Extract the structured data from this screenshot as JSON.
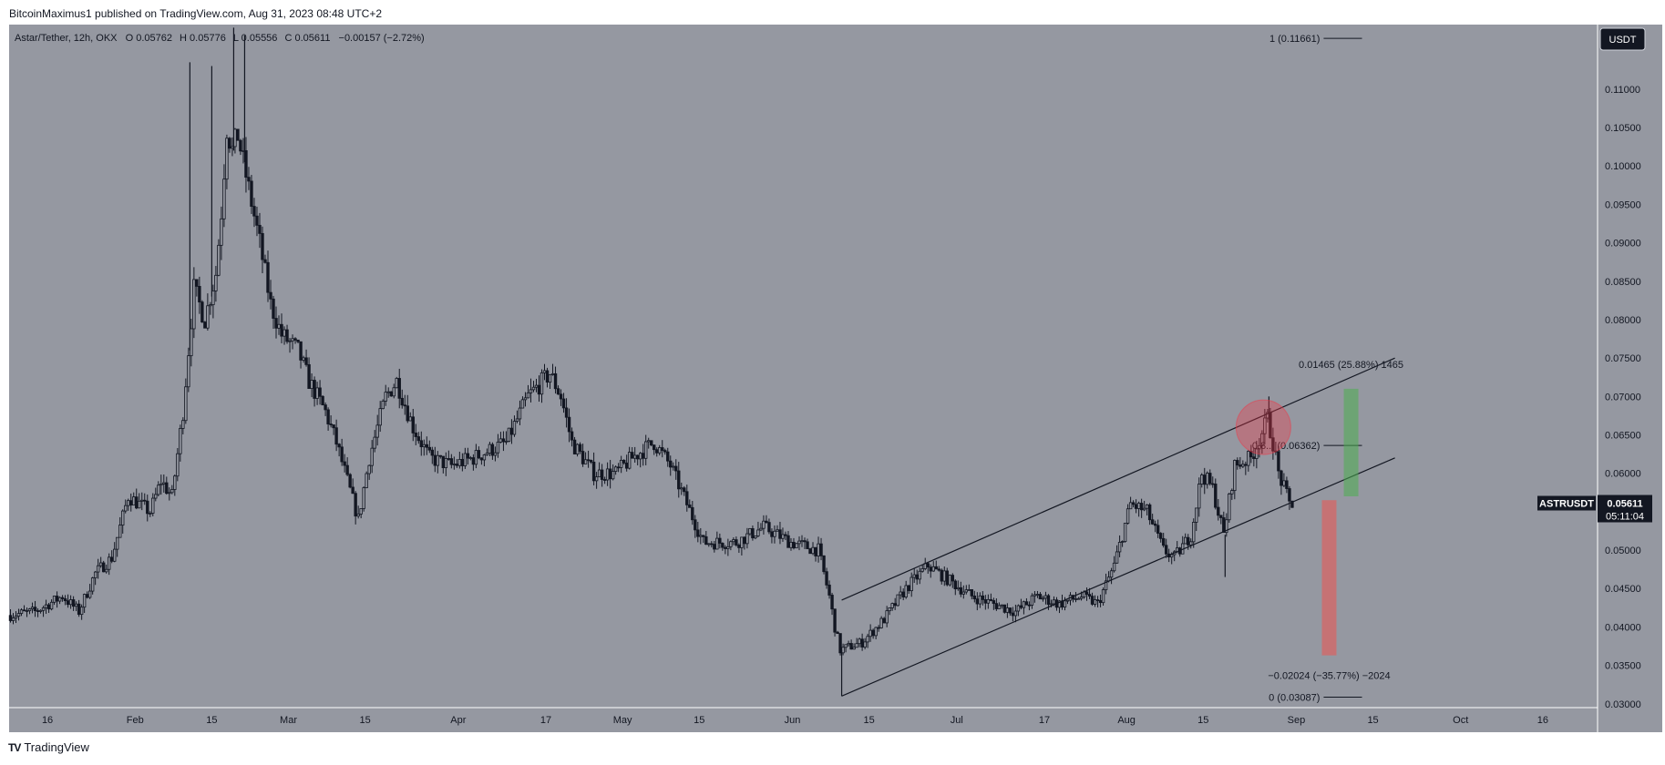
{
  "header": {
    "publisher_line": "BitcoinMaximus1 published on TradingView.com, Aug 31, 2023 08:48 UTC+2"
  },
  "footer": {
    "logo_glyph": "TV",
    "brand": "TradingView"
  },
  "colors": {
    "page_bg": "#ffffff",
    "chart_bg": "#9598a1",
    "candle": "#131722",
    "axis_text": "#131722",
    "circle": "#f23645",
    "green_bar": "#4caf50",
    "red_bar": "#ef5350",
    "price_tag_bg": "#131722",
    "price_tag_text": "#ffffff"
  },
  "legend": {
    "symbol": "Astar/Tether, 12h, OKX",
    "o_label": "O",
    "o_value": "0.05762",
    "h_label": "H",
    "h_value": "0.05776",
    "l_label": "L",
    "l_value": "0.05556",
    "c_label": "C",
    "c_value": "0.05611",
    "change": "−0.00157 (−2.72%)"
  },
  "currency_button": "USDT",
  "price_tag": {
    "symbol": "ASTRUSDT",
    "price": "0.05611",
    "countdown": "05:11:04"
  },
  "chart_data": {
    "type": "candlestick",
    "symbol": "ASTRUSDT",
    "timeframe": "12h",
    "ylim": [
      0.0295,
      0.1184
    ],
    "xlim": [
      "2023-01-09",
      "2023-10-26"
    ],
    "y_ticks": [
      "0.03000",
      "0.03500",
      "0.04000",
      "0.04500",
      "0.05000",
      "0.05500",
      "0.06000",
      "0.06500",
      "0.07000",
      "0.07500",
      "0.08000",
      "0.08500",
      "0.09000",
      "0.09500",
      "0.10000",
      "0.10500",
      "0.11000"
    ],
    "x_ticks": [
      {
        "label": "16",
        "date": "2023-01-16"
      },
      {
        "label": "Feb",
        "date": "2023-02-01"
      },
      {
        "label": "15",
        "date": "2023-02-15"
      },
      {
        "label": "Mar",
        "date": "2023-03-01"
      },
      {
        "label": "15",
        "date": "2023-03-15"
      },
      {
        "label": "Apr",
        "date": "2023-04-01"
      },
      {
        "label": "17",
        "date": "2023-04-17"
      },
      {
        "label": "May",
        "date": "2023-05-01"
      },
      {
        "label": "15",
        "date": "2023-05-15"
      },
      {
        "label": "Jun",
        "date": "2023-06-01"
      },
      {
        "label": "15",
        "date": "2023-06-15"
      },
      {
        "label": "Jul",
        "date": "2023-07-01"
      },
      {
        "label": "17",
        "date": "2023-07-17"
      },
      {
        "label": "Aug",
        "date": "2023-08-01"
      },
      {
        "label": "15",
        "date": "2023-08-15"
      },
      {
        "label": "Sep",
        "date": "2023-09-01"
      },
      {
        "label": "15",
        "date": "2023-09-15"
      },
      {
        "label": "Oct",
        "date": "2023-10-01"
      },
      {
        "label": "16",
        "date": "2023-10-16"
      }
    ],
    "price_path": [
      [
        "2023-01-09",
        0.0415
      ],
      [
        "2023-01-14",
        0.042
      ],
      [
        "2023-01-19",
        0.044
      ],
      [
        "2023-01-22",
        0.042
      ],
      [
        "2023-01-25",
        0.047
      ],
      [
        "2023-01-28",
        0.049
      ],
      [
        "2023-01-31",
        0.057
      ],
      [
        "2023-02-04",
        0.055
      ],
      [
        "2023-02-06",
        0.059
      ],
      [
        "2023-02-08",
        0.057
      ],
      [
        "2023-02-10",
        0.068
      ],
      [
        "2023-02-12",
        0.084
      ],
      [
        "2023-02-14",
        0.08
      ],
      [
        "2023-02-16",
        0.086
      ],
      [
        "2023-02-17",
        0.094
      ],
      [
        "2023-02-18",
        0.105
      ],
      [
        "2023-02-19",
        0.102
      ],
      [
        "2023-02-20",
        0.104
      ],
      [
        "2023-02-22",
        0.097
      ],
      [
        "2023-02-24",
        0.09
      ],
      [
        "2023-02-26",
        0.082
      ],
      [
        "2023-02-28",
        0.078
      ],
      [
        "2023-03-03",
        0.076
      ],
      [
        "2023-03-05",
        0.072
      ],
      [
        "2023-03-08",
        0.068
      ],
      [
        "2023-03-10",
        0.064
      ],
      [
        "2023-03-12",
        0.059
      ],
      [
        "2023-03-14",
        0.054
      ],
      [
        "2023-03-16",
        0.062
      ],
      [
        "2023-03-19",
        0.07
      ],
      [
        "2023-03-21",
        0.072
      ],
      [
        "2023-03-24",
        0.066
      ],
      [
        "2023-03-27",
        0.062
      ],
      [
        "2023-03-31",
        0.061
      ],
      [
        "2023-04-04",
        0.062
      ],
      [
        "2023-04-07",
        0.063
      ],
      [
        "2023-04-10",
        0.064
      ],
      [
        "2023-04-14",
        0.07
      ],
      [
        "2023-04-18",
        0.073
      ],
      [
        "2023-04-20",
        0.07
      ],
      [
        "2023-04-22",
        0.064
      ],
      [
        "2023-04-26",
        0.06
      ],
      [
        "2023-04-30",
        0.06
      ],
      [
        "2023-05-03",
        0.062
      ],
      [
        "2023-05-07",
        0.064
      ],
      [
        "2023-05-10",
        0.061
      ],
      [
        "2023-05-13",
        0.056
      ],
      [
        "2023-05-16",
        0.051
      ],
      [
        "2023-05-22",
        0.051
      ],
      [
        "2023-05-27",
        0.053
      ],
      [
        "2023-06-01",
        0.051
      ],
      [
        "2023-06-06",
        0.05
      ],
      [
        "2023-06-08",
        0.044
      ],
      [
        "2023-06-09",
        0.04
      ],
      [
        "2023-06-10",
        0.037
      ],
      [
        "2023-06-14",
        0.038
      ],
      [
        "2023-06-18",
        0.041
      ],
      [
        "2023-06-22",
        0.045
      ],
      [
        "2023-06-26",
        0.048
      ],
      [
        "2023-06-30",
        0.046
      ],
      [
        "2023-07-04",
        0.044
      ],
      [
        "2023-07-08",
        0.043
      ],
      [
        "2023-07-12",
        0.042
      ],
      [
        "2023-07-16",
        0.044
      ],
      [
        "2023-07-20",
        0.043
      ],
      [
        "2023-07-24",
        0.044
      ],
      [
        "2023-07-27",
        0.043
      ],
      [
        "2023-07-30",
        0.048
      ],
      [
        "2023-08-02",
        0.056
      ],
      [
        "2023-08-05",
        0.055
      ],
      [
        "2023-08-08",
        0.05
      ],
      [
        "2023-08-10",
        0.049
      ],
      [
        "2023-08-13",
        0.052
      ],
      [
        "2023-08-15",
        0.06
      ],
      [
        "2023-08-17",
        0.058
      ],
      [
        "2023-08-19",
        0.052
      ],
      [
        "2023-08-21",
        0.061
      ],
      [
        "2023-08-24",
        0.062
      ],
      [
        "2023-08-27",
        0.067
      ],
      [
        "2023-08-28",
        0.064
      ],
      [
        "2023-08-29",
        0.06
      ],
      [
        "2023-08-31",
        0.0561
      ]
    ],
    "spikes": [
      {
        "date": "2023-02-11",
        "value": 0.1135
      },
      {
        "date": "2023-02-15",
        "value": 0.113
      },
      {
        "date": "2023-02-19",
        "value": 0.118
      },
      {
        "date": "2023-02-21",
        "value": 0.117
      },
      {
        "date": "2023-06-10",
        "value": 0.031
      },
      {
        "date": "2023-08-19",
        "value": 0.0465
      },
      {
        "date": "2023-08-27",
        "value": 0.07
      }
    ],
    "channel": {
      "upper": [
        [
          "2023-06-10",
          0.0435
        ],
        [
          "2023-09-19",
          0.075
        ]
      ],
      "lower": [
        [
          "2023-06-10",
          0.031
        ],
        [
          "2023-09-19",
          0.062
        ]
      ]
    },
    "fib": {
      "levels": [
        {
          "text": "1 (0.11661)",
          "value": 0.11661,
          "start": "2023-09-01",
          "end": "2023-09-08"
        },
        {
          "text": "0.8... (0.06362)",
          "value": 0.06362,
          "start": "2023-09-01",
          "end": "2023-09-08"
        },
        {
          "text": "0 (0.03087)",
          "value": 0.03087,
          "start": "2023-09-01",
          "end": "2023-09-08"
        }
      ]
    },
    "projections": [
      {
        "kind": "up",
        "color": "#4caf50",
        "date": "2023-09-11",
        "from": 0.057,
        "to": 0.071,
        "label": "0.01465 (25.88%) 1465",
        "label_value": 0.0742
      },
      {
        "kind": "down",
        "color": "#ef5350",
        "date": "2023-09-07",
        "from": 0.0565,
        "to": 0.0363,
        "label": "−0.02024 (−35.77%) −2024",
        "label_value": 0.0337
      }
    ],
    "highlight_circle": {
      "date": "2023-08-26",
      "value": 0.066
    },
    "last_price": 0.05611
  }
}
